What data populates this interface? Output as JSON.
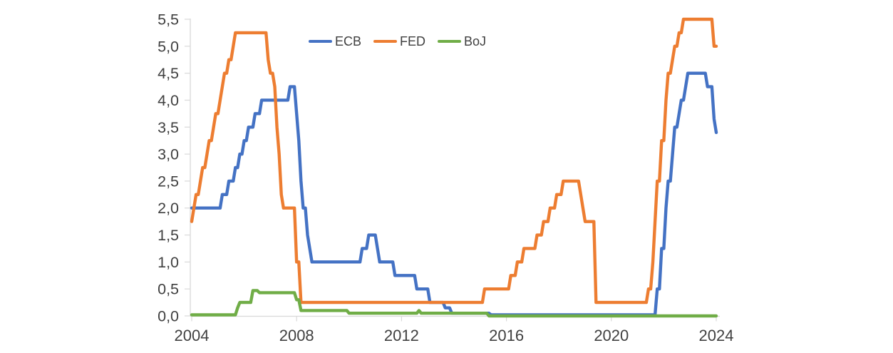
{
  "chart_data": {
    "type": "line",
    "title": "",
    "legend": {
      "position": "top-center"
    },
    "axes": {
      "y_min": 0.0,
      "y_max": 5.5,
      "y_step": 0.5,
      "y_tick_labels": [
        "0,0",
        "0,5",
        "1,0",
        "1,5",
        "2,0",
        "2,5",
        "3,0",
        "3,5",
        "4,0",
        "4,5",
        "5,0",
        "5,5"
      ],
      "x_tick_labels": [
        "2004",
        "2008",
        "2012",
        "2016",
        "2020",
        "2024"
      ],
      "x_tick_dates": [
        "2004-10",
        "2008-10",
        "2012-10",
        "2016-10",
        "2020-10",
        "2024-10"
      ],
      "grid": false,
      "axis_color": "#d9d9d9",
      "label_color": "#404040"
    },
    "x_range": {
      "start": "2004-10",
      "end": "2024-10",
      "frequency": "monthly"
    },
    "series": [
      {
        "name": "ECB",
        "color": "#4472C4",
        "points": [
          [
            "2004-10",
            2.0
          ],
          [
            "2005-12",
            2.25
          ],
          [
            "2006-03",
            2.5
          ],
          [
            "2006-06",
            2.75
          ],
          [
            "2006-08",
            3.0
          ],
          [
            "2006-10",
            3.25
          ],
          [
            "2006-12",
            3.5
          ],
          [
            "2007-03",
            3.75
          ],
          [
            "2007-06",
            4.0
          ],
          [
            "2008-07",
            4.25
          ],
          [
            "2008-10",
            3.75
          ],
          [
            "2008-11",
            3.25
          ],
          [
            "2008-12",
            2.5
          ],
          [
            "2009-01",
            2.0
          ],
          [
            "2009-03",
            1.5
          ],
          [
            "2009-04",
            1.25
          ],
          [
            "2009-05",
            1.0
          ],
          [
            "2011-04",
            1.25
          ],
          [
            "2011-07",
            1.5
          ],
          [
            "2011-11",
            1.25
          ],
          [
            "2011-12",
            1.0
          ],
          [
            "2012-07",
            0.75
          ],
          [
            "2013-05",
            0.5
          ],
          [
            "2013-11",
            0.25
          ],
          [
            "2014-06",
            0.15
          ],
          [
            "2014-09",
            0.05
          ],
          [
            "2016-03",
            0.02
          ],
          [
            "2022-07",
            0.5
          ],
          [
            "2022-09",
            1.25
          ],
          [
            "2022-11",
            2.0
          ],
          [
            "2022-12",
            2.5
          ],
          [
            "2023-02",
            3.0
          ],
          [
            "2023-03",
            3.5
          ],
          [
            "2023-05",
            3.75
          ],
          [
            "2023-06",
            4.0
          ],
          [
            "2023-08",
            4.25
          ],
          [
            "2023-09",
            4.5
          ],
          [
            "2024-06",
            4.25
          ],
          [
            "2024-09",
            3.65
          ],
          [
            "2024-10",
            3.4
          ]
        ]
      },
      {
        "name": "FED",
        "color": "#ED7D31",
        "points": [
          [
            "2004-10",
            1.75
          ],
          [
            "2004-11",
            2.0
          ],
          [
            "2004-12",
            2.25
          ],
          [
            "2005-02",
            2.5
          ],
          [
            "2005-03",
            2.75
          ],
          [
            "2005-05",
            3.0
          ],
          [
            "2005-06",
            3.25
          ],
          [
            "2005-08",
            3.5
          ],
          [
            "2005-09",
            3.75
          ],
          [
            "2005-11",
            4.0
          ],
          [
            "2005-12",
            4.25
          ],
          [
            "2006-01",
            4.5
          ],
          [
            "2006-03",
            4.75
          ],
          [
            "2006-05",
            5.0
          ],
          [
            "2006-06",
            5.25
          ],
          [
            "2007-09",
            4.75
          ],
          [
            "2007-10",
            4.5
          ],
          [
            "2007-12",
            4.25
          ],
          [
            "2008-01",
            3.5
          ],
          [
            "2008-02",
            3.0
          ],
          [
            "2008-03",
            2.25
          ],
          [
            "2008-04",
            2.0
          ],
          [
            "2008-10",
            1.0
          ],
          [
            "2008-12",
            0.25
          ],
          [
            "2015-12",
            0.5
          ],
          [
            "2016-12",
            0.75
          ],
          [
            "2017-03",
            1.0
          ],
          [
            "2017-06",
            1.25
          ],
          [
            "2017-12",
            1.5
          ],
          [
            "2018-03",
            1.75
          ],
          [
            "2018-06",
            2.0
          ],
          [
            "2018-09",
            2.25
          ],
          [
            "2018-12",
            2.5
          ],
          [
            "2019-08",
            2.25
          ],
          [
            "2019-09",
            2.0
          ],
          [
            "2019-10",
            1.75
          ],
          [
            "2020-03",
            0.25
          ],
          [
            "2022-03",
            0.5
          ],
          [
            "2022-05",
            1.0
          ],
          [
            "2022-06",
            1.75
          ],
          [
            "2022-07",
            2.5
          ],
          [
            "2022-09",
            3.25
          ],
          [
            "2022-11",
            4.0
          ],
          [
            "2022-12",
            4.5
          ],
          [
            "2023-02",
            4.75
          ],
          [
            "2023-03",
            5.0
          ],
          [
            "2023-05",
            5.25
          ],
          [
            "2023-07",
            5.5
          ],
          [
            "2024-09",
            5.0
          ]
        ]
      },
      {
        "name": "BoJ",
        "color": "#70AD47",
        "points": [
          [
            "2004-10",
            0.02
          ],
          [
            "2006-07",
            0.15
          ],
          [
            "2006-08",
            0.25
          ],
          [
            "2007-02",
            0.47
          ],
          [
            "2007-05",
            0.43
          ],
          [
            "2008-10",
            0.3
          ],
          [
            "2008-12",
            0.1
          ],
          [
            "2010-10",
            0.05
          ],
          [
            "2013-06",
            0.1
          ],
          [
            "2013-07",
            0.05
          ],
          [
            "2016-02",
            0.0
          ]
        ]
      }
    ]
  }
}
